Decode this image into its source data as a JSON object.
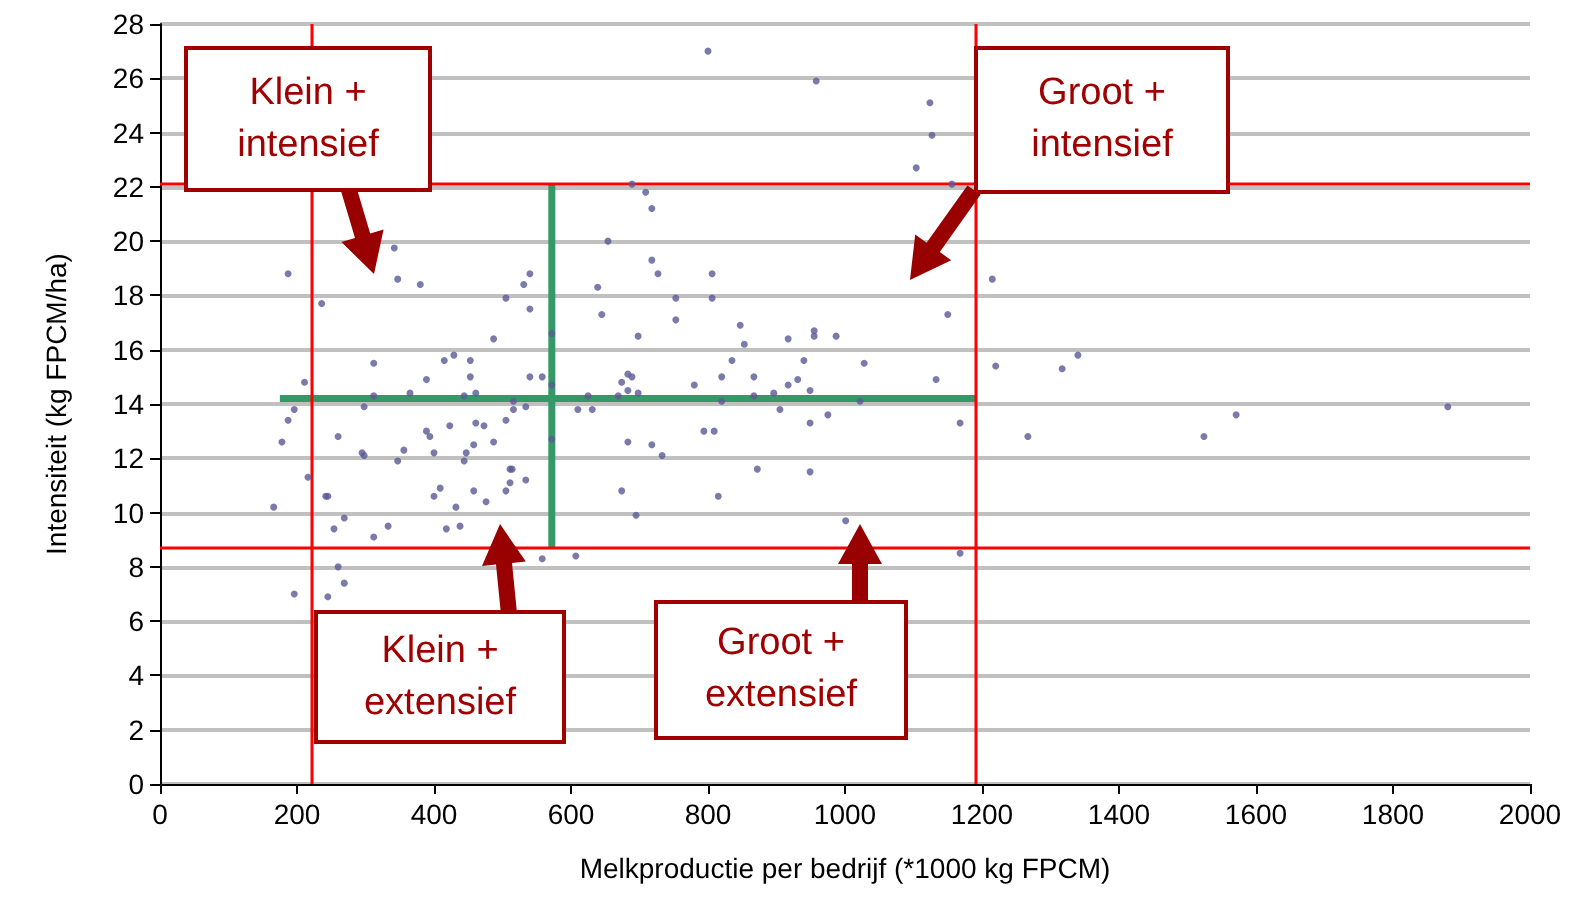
{
  "chart_data": {
    "type": "scatter",
    "xlabel": "Melkproductie per bedrijf (*1000 kg FPCM)",
    "ylabel": "Intensiteit (kg FPCM/ha)",
    "annotations": [
      "Klein + intensief",
      "Groot + intensief",
      "Klein + extensief",
      "Groot + extensief"
    ],
    "xlim": [
      0,
      2000
    ],
    "xticks": [
      0,
      200,
      400,
      600,
      800,
      1000,
      1200,
      1400,
      1600,
      1800,
      2000
    ],
    "ylim": [
      0,
      28
    ],
    "yticks": [
      0,
      2,
      4,
      6,
      8,
      10,
      12,
      14,
      16,
      18,
      20,
      22,
      24,
      26,
      28
    ],
    "grid": "y",
    "marker": "circle",
    "ref_lines": [
      {
        "axis": "x",
        "value": 220,
        "color": "#ff0000"
      },
      {
        "axis": "x",
        "value": 1190,
        "color": "#ff0000"
      },
      {
        "axis": "y",
        "value": 22.1,
        "color": "#ff0000"
      },
      {
        "axis": "y",
        "value": 8.7,
        "color": "#ff0000"
      }
    ],
    "series": [
      {
        "color": "#5a5a96",
        "x": [
          342,
          187,
          347,
          380,
          236,
          540,
          531,
          505,
          540,
          487,
          312,
          415,
          429,
          453,
          211,
          389,
          453,
          540,
          558,
          196,
          298,
          312,
          365,
          444,
          461,
          516,
          534,
          516,
          505,
          187,
          178,
          260,
          389,
          394,
          423,
          461,
          473,
          487,
          458,
          447,
          444,
          400,
          356,
          347,
          295,
          298,
          511,
          514,
          534,
          511,
          505,
          216,
          409,
          400,
          458,
          476,
          432,
          242,
          245,
          166,
          269,
          254,
          333,
          312,
          418,
          438,
          558,
          607,
          260,
          269,
          196,
          245,
          610,
          572,
          572,
          572,
          800,
          958,
          689,
          709,
          718,
          654,
          718,
          727,
          806,
          639,
          753,
          806,
          645,
          753,
          698,
          847,
          853,
          955,
          955,
          917,
          987,
          835,
          940,
          683,
          689,
          674,
          683,
          669,
          698,
          625,
          780,
          820,
          867,
          931,
          917,
          949,
          896,
          867,
          820,
          631,
          905,
          975,
          949,
          794,
          809,
          683,
          718,
          733,
          872,
          949,
          674,
          815,
          695,
          1001,
          1124,
          1127,
          1104,
          1156,
          1215,
          1150,
          1028,
          1220,
          1340,
          1317,
          1133,
          1022,
          1168,
          1267,
          1168,
          1571,
          1524,
          1880
        ],
        "values": [
          19.75,
          18.8,
          18.6,
          18.4,
          17.7,
          18.8,
          18.4,
          17.9,
          17.5,
          16.4,
          15.5,
          15.6,
          15.8,
          15.6,
          14.8,
          14.9,
          15.0,
          15.0,
          15.0,
          13.8,
          13.9,
          14.3,
          14.4,
          14.3,
          14.4,
          14.1,
          13.9,
          13.8,
          13.4,
          13.4,
          12.6,
          12.8,
          13.0,
          12.8,
          13.2,
          13.3,
          13.2,
          12.6,
          12.5,
          12.2,
          11.9,
          12.2,
          12.3,
          11.9,
          12.2,
          12.1,
          11.6,
          11.6,
          11.2,
          11.1,
          10.8,
          11.3,
          10.9,
          10.6,
          10.8,
          10.4,
          10.2,
          10.6,
          10.6,
          10.2,
          9.8,
          9.4,
          9.5,
          9.1,
          9.4,
          9.5,
          8.3,
          8.4,
          8.0,
          7.4,
          7.0,
          6.9,
          13.8,
          16.6,
          14.7,
          12.7,
          27.0,
          25.9,
          22.1,
          21.8,
          21.2,
          20.0,
          19.3,
          18.8,
          18.8,
          18.3,
          17.9,
          17.9,
          17.3,
          17.1,
          16.5,
          16.9,
          16.2,
          16.7,
          16.5,
          16.4,
          16.5,
          15.6,
          15.6,
          15.1,
          15.0,
          14.8,
          14.5,
          14.3,
          14.4,
          14.3,
          14.7,
          15.0,
          15.0,
          14.9,
          14.7,
          14.5,
          14.4,
          14.3,
          14.1,
          13.8,
          13.8,
          13.6,
          13.3,
          13.0,
          13.0,
          12.6,
          12.5,
          12.1,
          11.6,
          11.5,
          10.8,
          10.6,
          9.9,
          9.7,
          25.1,
          23.9,
          22.7,
          22.1,
          18.6,
          17.3,
          15.5,
          15.4,
          15.8,
          15.3,
          14.9,
          14.1,
          13.3,
          12.8,
          8.5,
          13.6,
          12.8,
          13.9
        ]
      },
      {
        "type": "line",
        "color": "#339966",
        "marker": "none",
        "x": [
          175,
          1190
        ],
        "values": [
          14.2,
          14.2
        ]
      },
      {
        "type": "line",
        "color": "#339966",
        "marker": "none",
        "x": [
          572,
          572
        ],
        "values": [
          8.7,
          22.1
        ]
      }
    ]
  }
}
